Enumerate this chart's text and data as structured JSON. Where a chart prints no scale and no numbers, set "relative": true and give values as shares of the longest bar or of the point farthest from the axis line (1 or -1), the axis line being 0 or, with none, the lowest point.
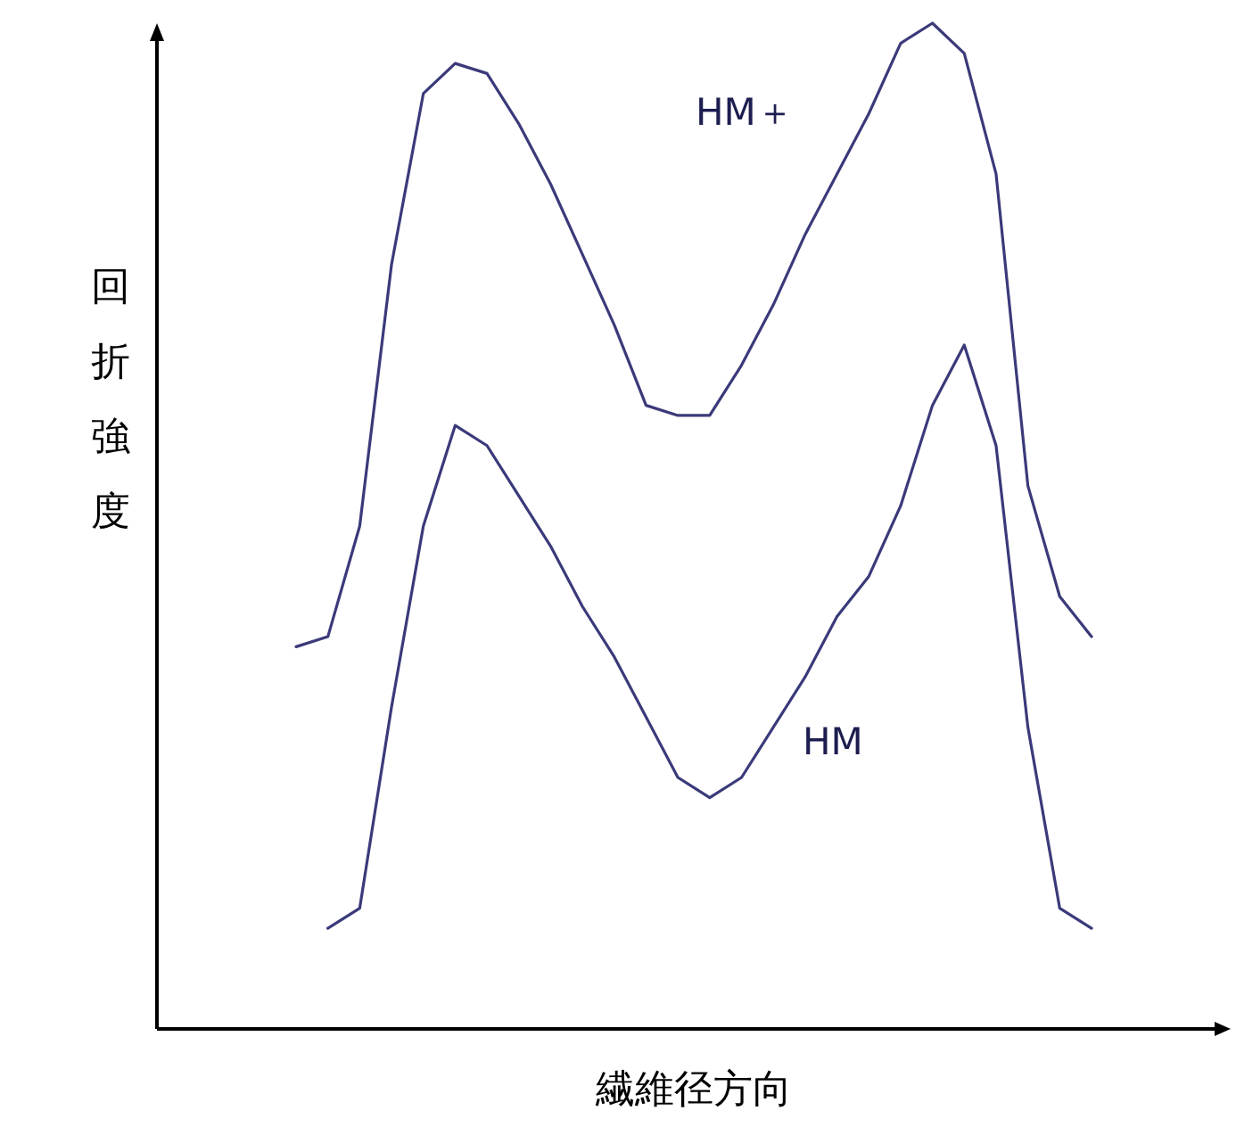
{
  "chart_data": {
    "type": "line",
    "relative": true,
    "xlabel": "繊維径方向",
    "ylabel": "回折強度",
    "marker": "none",
    "line_style": "solid",
    "categories": [
      null,
      null,
      null,
      null,
      null,
      null,
      null,
      null,
      null,
      null,
      null,
      null,
      null,
      null,
      null,
      null,
      null,
      null,
      null,
      null,
      null,
      null,
      null,
      null,
      null,
      null
    ],
    "series": [
      {
        "name": "HM＋",
        "color": "#3a3a7a",
        "values": [
          0.38,
          0.39,
          0.5,
          0.76,
          0.93,
          0.96,
          0.95,
          0.9,
          0.84,
          0.77,
          0.7,
          0.62,
          0.61,
          0.61,
          0.66,
          0.72,
          0.79,
          0.85,
          0.91,
          0.98,
          1,
          0.97,
          0.85,
          0.54,
          0.43,
          0.39
        ]
      },
      {
        "name": "HM",
        "color": "#3a3a7a",
        "values": [
          null,
          0.1,
          0.12,
          0.32,
          0.5,
          0.6,
          0.58,
          0.53,
          0.48,
          0.42,
          0.37,
          0.31,
          0.25,
          0.23,
          0.25,
          0.3,
          0.35,
          0.41,
          0.45,
          0.52,
          0.62,
          0.68,
          0.58,
          0.3,
          0.12,
          0.1
        ]
      }
    ]
  }
}
